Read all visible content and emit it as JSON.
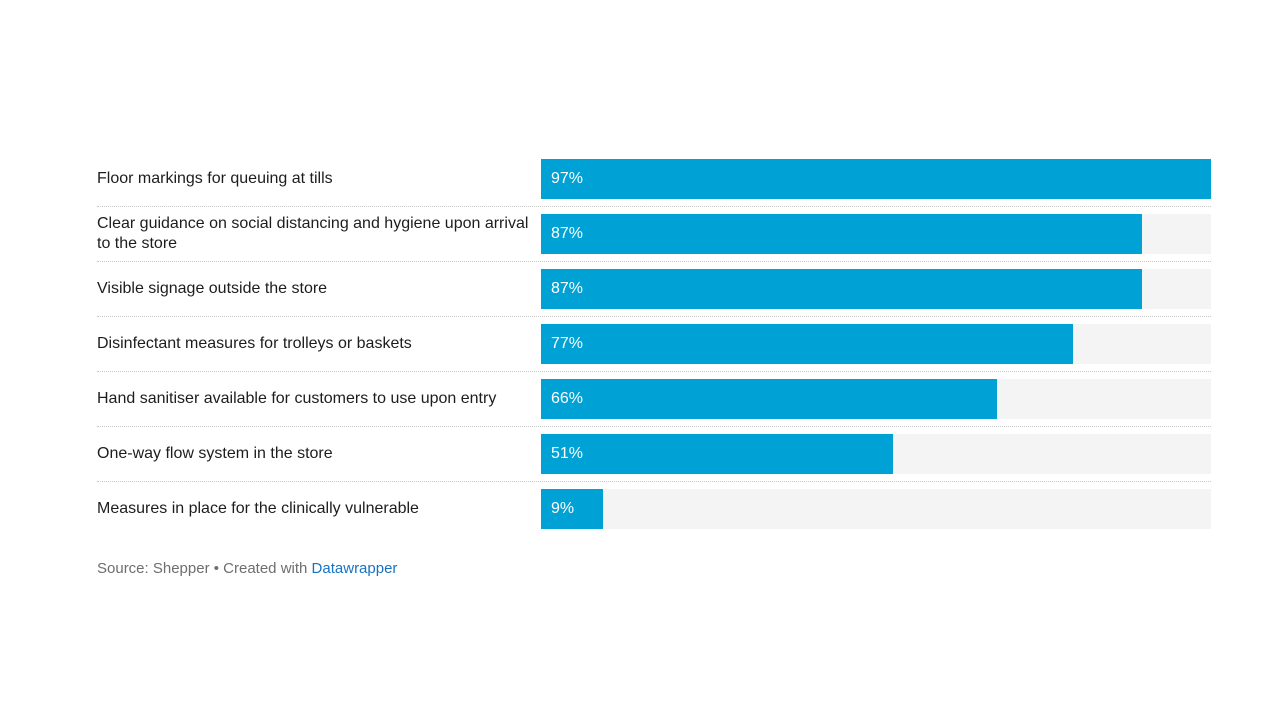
{
  "chart_data": {
    "type": "bar",
    "orientation": "horizontal",
    "title": "",
    "categories": [
      "Floor markings for queuing at tills",
      "Clear guidance on social distancing and hygiene upon arrival to the store",
      "Visible signage outside the store",
      "Disinfectant measures for trolleys or baskets",
      "Hand sanitiser available for customers to use upon entry",
      "One-way flow system in the store",
      "Measures in place for the clinically vulnerable"
    ],
    "values": [
      97,
      87,
      87,
      77,
      66,
      51,
      9
    ],
    "value_labels": [
      "97%",
      "87%",
      "87%",
      "77%",
      "66%",
      "51%",
      "9%"
    ],
    "scale_max": 97,
    "bar_color": "#00a2d5",
    "track_color": "#f4f4f4",
    "grid": "dotted-row-separators",
    "legend": "none"
  },
  "footer": {
    "text_before_link": "Source: Shepper • Created with ",
    "link_text": "Datawrapper"
  }
}
